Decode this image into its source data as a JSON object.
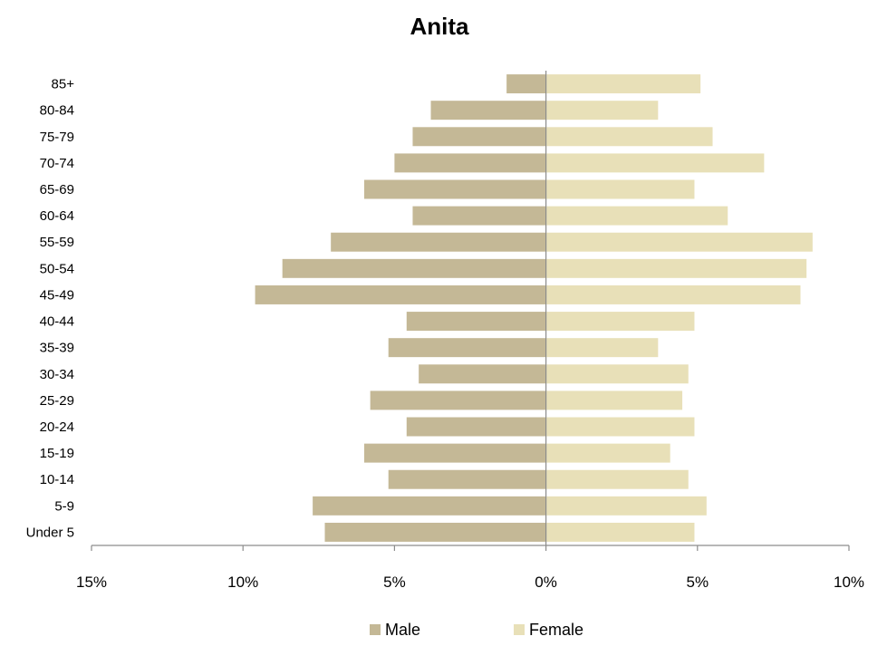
{
  "chart_data": {
    "type": "bar",
    "orientation": "horizontal-pyramid",
    "title": "Anita",
    "categories": [
      "Under 5",
      "5-9",
      "10-14",
      "15-19",
      "20-24",
      "25-29",
      "30-34",
      "35-39",
      "40-44",
      "45-49",
      "50-54",
      "55-59",
      "60-64",
      "65-69",
      "70-74",
      "75-79",
      "80-84",
      "85+"
    ],
    "series": [
      {
        "name": "Male",
        "color": "#c4b896",
        "values": [
          7.3,
          7.7,
          5.2,
          6.0,
          4.6,
          5.8,
          4.2,
          5.2,
          4.6,
          9.6,
          8.7,
          7.1,
          4.4,
          6.0,
          5.0,
          4.4,
          3.8,
          1.3
        ]
      },
      {
        "name": "Female",
        "color": "#e8e0b8",
        "values": [
          4.9,
          5.3,
          4.7,
          4.1,
          4.9,
          4.5,
          4.7,
          3.7,
          4.9,
          8.4,
          8.6,
          8.8,
          6.0,
          4.9,
          7.2,
          5.5,
          3.7,
          5.1
        ]
      }
    ],
    "xlim": [
      -15,
      10
    ],
    "xticks": [
      -15,
      -10,
      -5,
      0,
      5,
      10
    ],
    "xtick_labels": [
      "15%",
      "10%",
      "5%",
      "0%",
      "5%",
      "10%"
    ],
    "xlabel": "",
    "ylabel": "",
    "grid": false,
    "legend_position": "bottom"
  }
}
